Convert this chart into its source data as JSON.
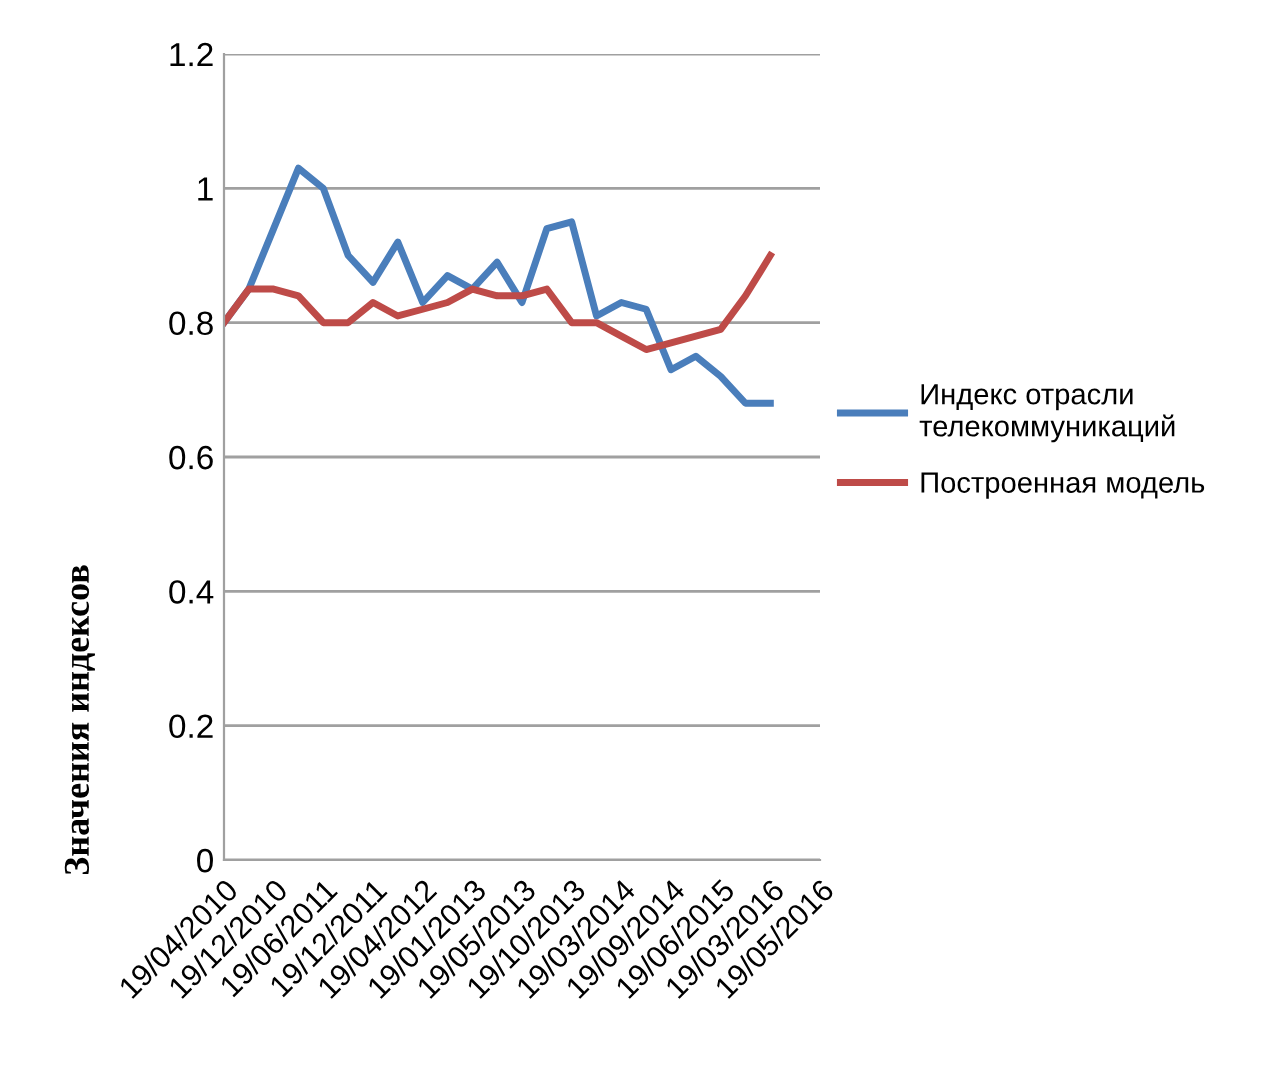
{
  "chart_data": {
    "type": "line",
    "ylabel": "Значения индексов",
    "categories": [
      "19/04/2010",
      null,
      "19/12/2010",
      null,
      "19/06/2011",
      null,
      "19/12/2011",
      null,
      "19/04/2012",
      null,
      "19/01/2013",
      null,
      "19/05/2013",
      null,
      "19/10/2013",
      null,
      "19/03/2014",
      null,
      "19/09/2014",
      null,
      "19/06/2015",
      null,
      "19/03/2016",
      null,
      "19/05/2016"
    ],
    "series": [
      {
        "name": "Индекс отрасли телекоммуникаций",
        "color": "#4a7ebb",
        "values": [
          0.8,
          0.85,
          0.94,
          1.03,
          1.0,
          0.9,
          0.86,
          0.92,
          0.83,
          0.87,
          0.85,
          0.89,
          0.83,
          0.94,
          0.95,
          0.81,
          0.83,
          0.82,
          0.73,
          0.75,
          0.72,
          0.68,
          0.68,
          null,
          null
        ]
      },
      {
        "name": "Построенная модель",
        "color": "#be4b48",
        "values": [
          0.8,
          0.85,
          0.85,
          0.84,
          0.8,
          0.8,
          0.83,
          0.81,
          0.82,
          0.83,
          0.85,
          0.84,
          0.84,
          0.85,
          0.8,
          0.8,
          0.78,
          0.76,
          0.77,
          0.78,
          0.79,
          0.84,
          0.9,
          null,
          null
        ]
      }
    ],
    "ylim": [
      0,
      1.2
    ],
    "yticks": [
      0,
      0.2,
      0.4,
      0.6,
      0.8,
      1,
      1.2
    ],
    "grid": "y",
    "legend": "right",
    "line_style": "solid"
  }
}
